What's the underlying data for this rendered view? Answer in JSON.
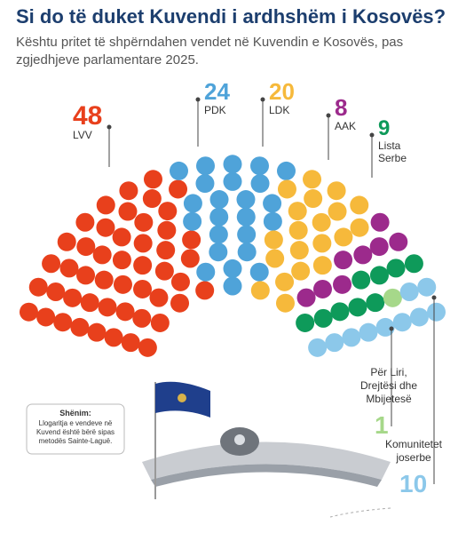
{
  "chart_data": {
    "type": "parliament",
    "title": "Si do të duket Kuvendi i ardhshëm i Kosovës?",
    "subtitle": "Kështu pritet të shpërndahen vendet në Kuvendin e Kosovës, pas zgjedhjeve parlamentare 2025.",
    "series": [
      {
        "name": "LVV",
        "color": "#e8401c",
        "values": [
          48
        ]
      },
      {
        "name": "PDK",
        "color": "#4fa3d9",
        "values": [
          24
        ]
      },
      {
        "name": "LDK",
        "color": "#f6b93b",
        "values": [
          20
        ]
      },
      {
        "name": "AAK",
        "color": "#9c2a8c",
        "values": [
          8
        ]
      },
      {
        "name": "Lista Serbe",
        "color": "#0e9a5a",
        "values": [
          9
        ]
      },
      {
        "name": "Për Liri, Drejtësi dhe Mbijetesë",
        "color": "#a6d88a",
        "values": [
          1
        ]
      },
      {
        "name": "Komunitetet joserbe",
        "color": "#8cc8ea",
        "values": [
          10
        ]
      }
    ],
    "note": {
      "title": "Shënim:",
      "text": "Llogaritja e vendeve në Kuvend është bërë sipas metodës Sainte-Laguë."
    }
  }
}
